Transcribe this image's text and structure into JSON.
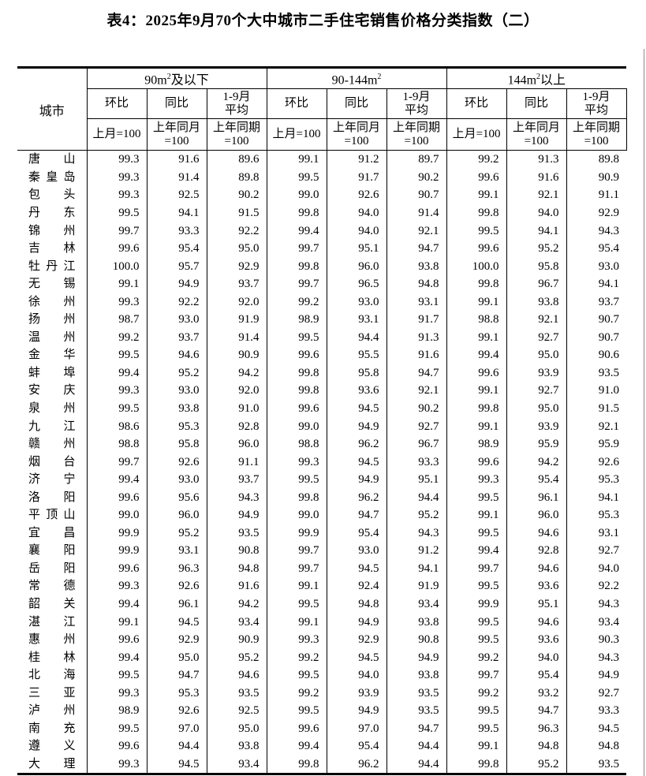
{
  "page": {
    "title": "表4：2025年9月70个大中城市二手住宅销售价格分类指数（二）"
  },
  "table": {
    "city_header": "城市",
    "groups": [
      {
        "prefix": "90m",
        "sup": "2",
        "suffix": "及以下"
      },
      {
        "prefix": "90-144m",
        "sup": "2",
        "suffix": ""
      },
      {
        "prefix": "144m",
        "sup": "2",
        "suffix": "以上"
      }
    ],
    "metrics": [
      {
        "label": "环比",
        "label2": "",
        "base": "上月=100",
        "base2": ""
      },
      {
        "label": "同比",
        "label2": "",
        "base": "上年同月",
        "base2": "=100"
      },
      {
        "label": "1-9月",
        "label2": "平均",
        "base": "上年同期",
        "base2": "=100"
      }
    ],
    "rows": [
      {
        "city": "唐山",
        "values": [
          "99.3",
          "91.6",
          "89.6",
          "99.1",
          "91.2",
          "89.7",
          "99.2",
          "91.3",
          "89.8"
        ]
      },
      {
        "city": "秦皇岛",
        "values": [
          "99.3",
          "91.4",
          "89.8",
          "99.5",
          "91.7",
          "90.2",
          "99.6",
          "91.6",
          "90.9"
        ]
      },
      {
        "city": "包头",
        "values": [
          "99.3",
          "92.5",
          "90.2",
          "99.0",
          "92.6",
          "90.7",
          "99.1",
          "92.1",
          "91.1"
        ]
      },
      {
        "city": "丹东",
        "values": [
          "99.5",
          "94.1",
          "91.5",
          "99.8",
          "94.0",
          "91.4",
          "99.8",
          "94.0",
          "92.9"
        ]
      },
      {
        "city": "锦州",
        "values": [
          "99.7",
          "93.3",
          "92.2",
          "99.4",
          "94.0",
          "92.1",
          "99.5",
          "94.1",
          "94.3"
        ]
      },
      {
        "city": "吉林",
        "values": [
          "99.6",
          "95.4",
          "95.0",
          "99.7",
          "95.1",
          "94.7",
          "99.6",
          "95.2",
          "95.4"
        ]
      },
      {
        "city": "牡丹江",
        "values": [
          "100.0",
          "95.7",
          "92.9",
          "99.8",
          "96.0",
          "93.8",
          "100.0",
          "95.8",
          "93.0"
        ]
      },
      {
        "city": "无锡",
        "values": [
          "99.1",
          "94.9",
          "93.7",
          "99.7",
          "96.5",
          "94.8",
          "99.8",
          "96.7",
          "94.1"
        ]
      },
      {
        "city": "徐州",
        "values": [
          "99.3",
          "92.2",
          "92.0",
          "99.2",
          "93.0",
          "93.1",
          "99.1",
          "93.8",
          "93.7"
        ]
      },
      {
        "city": "扬州",
        "values": [
          "98.7",
          "93.0",
          "91.9",
          "98.9",
          "93.1",
          "91.7",
          "98.8",
          "92.1",
          "90.7"
        ]
      },
      {
        "city": "温州",
        "values": [
          "99.2",
          "93.7",
          "91.4",
          "99.5",
          "94.4",
          "91.3",
          "99.1",
          "92.7",
          "90.7"
        ]
      },
      {
        "city": "金华",
        "values": [
          "99.5",
          "94.6",
          "90.9",
          "99.6",
          "95.5",
          "91.6",
          "99.4",
          "95.0",
          "90.6"
        ]
      },
      {
        "city": "蚌埠",
        "values": [
          "99.4",
          "95.2",
          "94.2",
          "99.8",
          "95.8",
          "94.7",
          "99.6",
          "93.9",
          "93.5"
        ]
      },
      {
        "city": "安庆",
        "values": [
          "99.3",
          "93.0",
          "92.0",
          "99.8",
          "93.6",
          "92.1",
          "99.1",
          "92.7",
          "91.0"
        ]
      },
      {
        "city": "泉州",
        "values": [
          "99.5",
          "93.8",
          "91.0",
          "99.6",
          "94.5",
          "90.2",
          "99.8",
          "95.0",
          "91.5"
        ]
      },
      {
        "city": "九江",
        "values": [
          "98.6",
          "95.3",
          "92.8",
          "99.0",
          "94.9",
          "92.7",
          "99.1",
          "93.9",
          "92.1"
        ]
      },
      {
        "city": "赣州",
        "values": [
          "98.8",
          "95.8",
          "96.0",
          "98.8",
          "96.2",
          "96.7",
          "98.9",
          "95.9",
          "95.9"
        ]
      },
      {
        "city": "烟台",
        "values": [
          "99.7",
          "92.6",
          "91.1",
          "99.3",
          "94.5",
          "93.3",
          "99.6",
          "94.2",
          "92.6"
        ]
      },
      {
        "city": "济宁",
        "values": [
          "99.4",
          "93.0",
          "93.7",
          "99.5",
          "94.9",
          "95.1",
          "99.3",
          "95.4",
          "95.3"
        ]
      },
      {
        "city": "洛阳",
        "values": [
          "99.6",
          "95.6",
          "94.3",
          "99.8",
          "96.2",
          "94.4",
          "99.5",
          "96.1",
          "94.1"
        ]
      },
      {
        "city": "平顶山",
        "values": [
          "99.0",
          "96.0",
          "94.9",
          "99.0",
          "94.7",
          "95.2",
          "99.1",
          "96.0",
          "95.3"
        ]
      },
      {
        "city": "宜昌",
        "values": [
          "99.9",
          "95.2",
          "93.5",
          "99.9",
          "95.4",
          "94.3",
          "99.5",
          "94.6",
          "93.1"
        ]
      },
      {
        "city": "襄阳",
        "values": [
          "99.9",
          "93.1",
          "90.8",
          "99.7",
          "93.0",
          "91.2",
          "99.4",
          "92.8",
          "92.7"
        ]
      },
      {
        "city": "岳阳",
        "values": [
          "99.6",
          "96.3",
          "94.8",
          "99.7",
          "94.5",
          "94.1",
          "99.7",
          "94.6",
          "94.0"
        ]
      },
      {
        "city": "常德",
        "values": [
          "99.3",
          "92.6",
          "91.6",
          "99.1",
          "92.4",
          "91.9",
          "99.5",
          "93.6",
          "92.2"
        ]
      },
      {
        "city": "韶关",
        "values": [
          "99.4",
          "96.1",
          "94.2",
          "99.5",
          "94.8",
          "93.4",
          "99.9",
          "95.1",
          "94.3"
        ]
      },
      {
        "city": "湛江",
        "values": [
          "99.1",
          "94.5",
          "93.4",
          "99.1",
          "94.9",
          "93.8",
          "99.5",
          "94.6",
          "93.4"
        ]
      },
      {
        "city": "惠州",
        "values": [
          "99.6",
          "92.9",
          "90.9",
          "99.3",
          "92.9",
          "90.8",
          "99.5",
          "93.6",
          "90.3"
        ]
      },
      {
        "city": "桂林",
        "values": [
          "99.4",
          "95.0",
          "95.2",
          "99.2",
          "94.5",
          "94.9",
          "99.2",
          "94.0",
          "94.3"
        ]
      },
      {
        "city": "北海",
        "values": [
          "99.5",
          "94.7",
          "94.6",
          "99.5",
          "94.0",
          "93.8",
          "99.7",
          "95.4",
          "94.9"
        ]
      },
      {
        "city": "三亚",
        "values": [
          "99.3",
          "95.3",
          "93.5",
          "99.2",
          "93.9",
          "93.5",
          "99.2",
          "93.2",
          "92.7"
        ]
      },
      {
        "city": "泸州",
        "values": [
          "98.9",
          "92.6",
          "92.5",
          "99.5",
          "94.9",
          "93.5",
          "99.5",
          "94.7",
          "93.3"
        ]
      },
      {
        "city": "南充",
        "values": [
          "99.5",
          "97.0",
          "95.0",
          "99.6",
          "97.0",
          "94.7",
          "99.5",
          "96.3",
          "94.5"
        ]
      },
      {
        "city": "遵义",
        "values": [
          "99.6",
          "94.4",
          "93.8",
          "99.4",
          "95.4",
          "94.4",
          "99.1",
          "94.8",
          "94.8"
        ]
      },
      {
        "city": "大理",
        "values": [
          "99.3",
          "94.5",
          "93.4",
          "99.8",
          "96.2",
          "94.4",
          "99.8",
          "95.2",
          "93.5"
        ]
      }
    ]
  }
}
